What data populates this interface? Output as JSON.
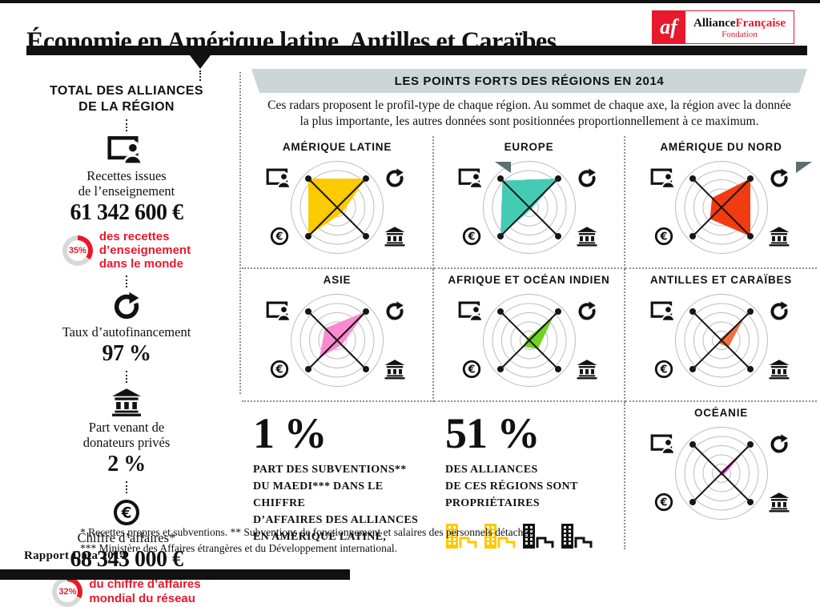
{
  "page": {
    "title": "Économie en Amérique latine, Antilles et Caraïbes",
    "footer": "Rapport Data 2014"
  },
  "logo": {
    "monogram": "af",
    "brand_black": "Alliance",
    "brand_red": "Française",
    "subtitle": "Fondation"
  },
  "sidebar": {
    "heading": "TOTAL DES ALLIANCES\nDE LA RÉGION",
    "stats": [
      {
        "icon": "teaching-board-icon",
        "label": "Recettes issues\nde l’enseignement",
        "value": "61 342 600 €",
        "donut_pct": 35,
        "donut_label": "35%",
        "donut_text": "des recettes\nd’enseignement\ndans le monde"
      },
      {
        "icon": "refresh-icon",
        "label": "Taux d’autofinancement",
        "value": "97 %"
      },
      {
        "icon": "bank-icon",
        "label": "Part venant de\ndonateurs privés",
        "value": "2 %"
      },
      {
        "icon": "euro-icon",
        "label": "Chiffre d’affaires*",
        "value": "68 343 000 €",
        "donut_pct": 32,
        "donut_label": "32%",
        "donut_text": "du chiffre d’affaires\nmondial du réseau"
      }
    ]
  },
  "banner": {
    "title": "LES POINTS FORTS DES RÉGIONS EN 2014",
    "description": "Ces radars proposent le profil-type de chaque région. Au sommet de chaque axe, la région avec la donnée\nla plus importante, les autres données sont positionnées proportionnellement à ce maximum."
  },
  "chart_data": {
    "type": "radar",
    "scale": "proportion of the maximum region per axis (0-1), radial",
    "rings": 5,
    "axes": [
      {
        "position": "top-left",
        "label": "Recettes issues de l’enseignement",
        "icon": "teaching-board-icon"
      },
      {
        "position": "top-right",
        "label": "Taux d’autofinancement",
        "icon": "refresh-icon"
      },
      {
        "position": "bottom-right",
        "label": "Part venant de donateurs privés",
        "icon": "bank-icon"
      },
      {
        "position": "bottom-left",
        "label": "Chiffre d’affaires",
        "icon": "euro-icon"
      }
    ],
    "series": [
      {
        "name": "AMÉRIQUE LATINE",
        "color": "#fcca00",
        "values": [
          1.0,
          1.0,
          0.18,
          1.0
        ]
      },
      {
        "name": "EUROPE",
        "color": "#45cbb4",
        "values": [
          0.93,
          1.0,
          0.06,
          1.0
        ]
      },
      {
        "name": "AMÉRIQUE DU NORD",
        "color": "#f23b10",
        "values": [
          0.33,
          1.0,
          1.0,
          0.4
        ]
      },
      {
        "name": "ASIE",
        "color": "#f98ad2",
        "values": [
          0.42,
          1.0,
          0.16,
          0.62
        ]
      },
      {
        "name": "AFRIQUE ET OCÉAN INDIEN",
        "color": "#6fd225",
        "values": [
          0.07,
          0.85,
          0.3,
          0.22
        ]
      },
      {
        "name": "ANTILLES ET CARAÏBES",
        "color": "#f0703c",
        "values": [
          0.05,
          0.78,
          0.24,
          0.1
        ]
      },
      {
        "name": "OCÉANIE",
        "color": "#e82cc5",
        "values": [
          0.04,
          1.0,
          0.06,
          0.08
        ]
      }
    ]
  },
  "highlights": [
    {
      "value": "1 %",
      "text": "PART DES SUBVENTIONS**\nDU MAEDI*** DANS LE CHIFFRE\nD’AFFAIRES DES ALLIANCES\nEN AMÉRIQUE LATINE, ANTILLES\nET CARAÏBES"
    },
    {
      "value": "51 %",
      "text": "DES ALLIANCES\nDE CES RÉGIONS SONT\nPROPRIÉTAIRES",
      "building_colors": [
        "#fcca00",
        "#fcca00",
        "#111111",
        "#111111"
      ]
    }
  ],
  "footnotes": "* Recettes propres et subventions. ** Subventions de fonctionnement et salaires des personnels détachés.\n*** Ministère des Affaires étrangères et du Développement international.",
  "colors": {
    "brand_red": "#e8192c",
    "ribbon": "#ccd6d7",
    "ribbon_fold": "#5d6e72",
    "donut_track": "#d8d8d8",
    "ink": "#111111"
  }
}
